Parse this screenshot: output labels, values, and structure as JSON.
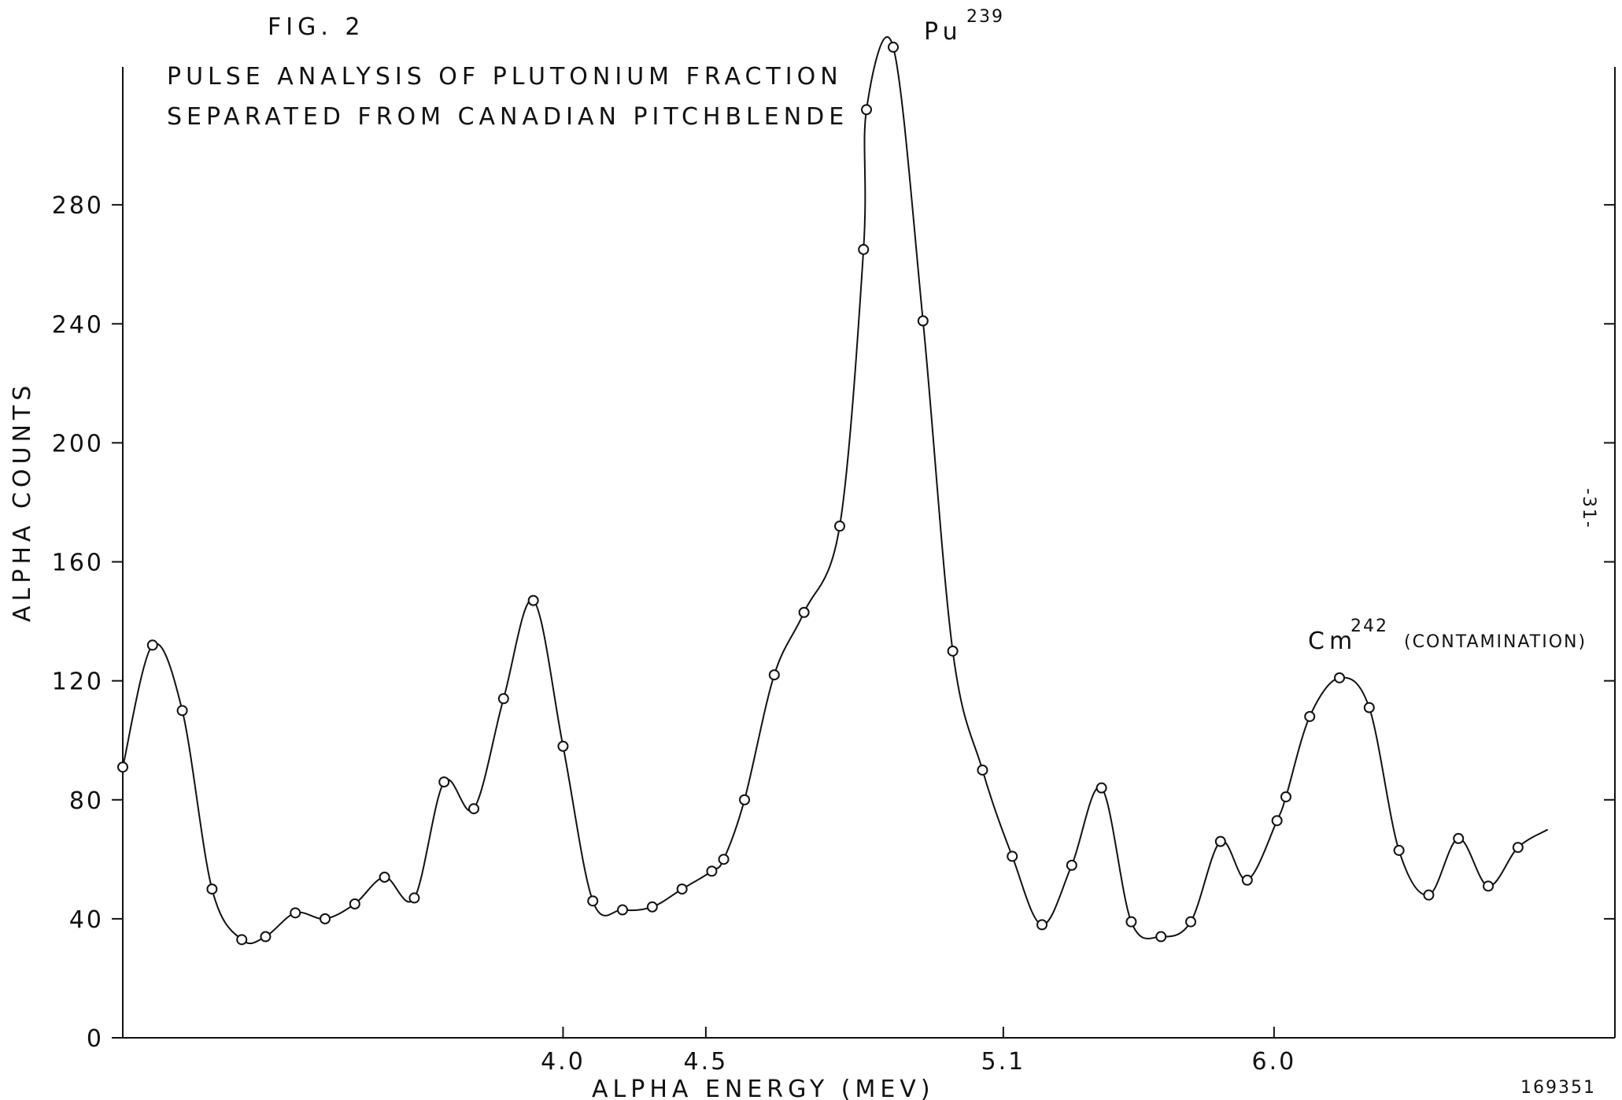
{
  "chart_data": {
    "type": "line",
    "figure_label": "FIG. 2",
    "title_lines": [
      "PULSE ANALYSIS OF PLUTONIUM FRACTION",
      "SEPARATED FROM CANADIAN PITCHBLENDE"
    ],
    "xlabel": "ALPHA ENERGY (MEV)",
    "ylabel": "ALPHA COUNTS",
    "x_ticks": [
      "4.0",
      "4.5",
      "5.1",
      "6.0"
    ],
    "y_ticks": [
      0,
      40,
      80,
      120,
      160,
      200,
      240,
      280
    ],
    "y_range": [
      0,
      328
    ],
    "grid": false,
    "peak_annotations": [
      {
        "symbol": "Pu",
        "mass": "239",
        "note": ""
      },
      {
        "symbol": "Cm",
        "mass": "242",
        "note": "(CONTAMINATION)"
      }
    ],
    "page_number": "-31-",
    "document_number": "169351",
    "points": [
      [
        0.0,
        91
      ],
      [
        1.0,
        132
      ],
      [
        2.0,
        110
      ],
      [
        3.0,
        50
      ],
      [
        4.0,
        33
      ],
      [
        4.8,
        34
      ],
      [
        5.8,
        42
      ],
      [
        6.8,
        40
      ],
      [
        7.8,
        45
      ],
      [
        8.8,
        54
      ],
      [
        9.8,
        47
      ],
      [
        10.8,
        86
      ],
      [
        11.8,
        77
      ],
      [
        12.8,
        114
      ],
      [
        13.8,
        147
      ],
      [
        14.8,
        98
      ],
      [
        15.8,
        46
      ],
      [
        16.8,
        43
      ],
      [
        17.8,
        44
      ],
      [
        18.8,
        50
      ],
      [
        19.8,
        56
      ],
      [
        20.2,
        60
      ],
      [
        20.9,
        80
      ],
      [
        21.9,
        122
      ],
      [
        22.9,
        143
      ],
      [
        24.1,
        172
      ],
      [
        24.9,
        265
      ],
      [
        25.0,
        312
      ],
      [
        25.9,
        333
      ],
      [
        26.9,
        241
      ],
      [
        27.9,
        130
      ],
      [
        28.9,
        90
      ],
      [
        29.9,
        61
      ],
      [
        30.9,
        38
      ],
      [
        31.9,
        58
      ],
      [
        32.9,
        84
      ],
      [
        33.9,
        39
      ],
      [
        34.9,
        34
      ],
      [
        35.9,
        39
      ],
      [
        36.9,
        66
      ],
      [
        37.8,
        53
      ],
      [
        38.8,
        73
      ],
      [
        39.1,
        81
      ],
      [
        39.9,
        108
      ],
      [
        40.9,
        121
      ],
      [
        41.9,
        111
      ],
      [
        42.9,
        63
      ],
      [
        43.9,
        48
      ],
      [
        44.9,
        67
      ],
      [
        45.9,
        51
      ],
      [
        46.9,
        64
      ]
    ],
    "tail": [
      [
        47.9,
        70
      ]
    ]
  }
}
